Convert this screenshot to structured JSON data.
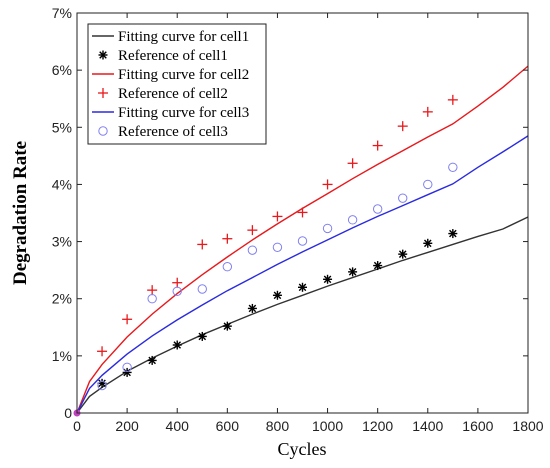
{
  "chart_data": {
    "type": "line",
    "xlabel": "Cycles",
    "ylabel": "Degradation Rate",
    "xlim": [
      0,
      1800
    ],
    "ylim": [
      0,
      7
    ],
    "xticks": [
      0,
      200,
      400,
      600,
      800,
      1000,
      1200,
      1400,
      1600,
      1800
    ],
    "xtick_labels": [
      "0",
      "200",
      "400",
      "600",
      "800",
      "1000",
      "1200",
      "1400",
      "1600",
      "1800"
    ],
    "yticks": [
      0,
      1,
      2,
      3,
      4,
      5,
      6,
      7
    ],
    "ytick_labels": [
      "0",
      "1%",
      "2%",
      "3%",
      "4%",
      "5%",
      "6%",
      "7%"
    ],
    "legend_position": "top-left",
    "grid": false,
    "series": [
      {
        "name": "Fitting curve for cell1",
        "kind": "curve",
        "color": "#333333",
        "x": [
          0,
          50,
          100,
          200,
          300,
          400,
          500,
          600,
          700,
          800,
          900,
          1000,
          1100,
          1200,
          1300,
          1400,
          1500,
          1600,
          1700,
          1800
        ],
        "y": [
          0,
          0.29,
          0.45,
          0.73,
          0.96,
          1.17,
          1.37,
          1.55,
          1.73,
          1.9,
          2.06,
          2.22,
          2.37,
          2.52,
          2.67,
          2.81,
          2.95,
          3.09,
          3.22,
          3.43
        ]
      },
      {
        "name": "Reference of cell1",
        "kind": "marker",
        "marker": "asterisk",
        "color": "#000000",
        "x": [
          100,
          200,
          300,
          400,
          500,
          600,
          700,
          800,
          900,
          1000,
          1100,
          1200,
          1300,
          1400,
          1500
        ],
        "y": [
          0.52,
          0.71,
          0.92,
          1.19,
          1.34,
          1.52,
          1.83,
          2.06,
          2.2,
          2.34,
          2.47,
          2.58,
          2.78,
          2.97,
          3.14
        ]
      },
      {
        "name": "Fitting curve for cell2",
        "kind": "curve",
        "color": "#e8191c",
        "x": [
          0,
          50,
          100,
          200,
          300,
          400,
          500,
          600,
          700,
          800,
          900,
          1000,
          1100,
          1200,
          1300,
          1400,
          1500,
          1600,
          1700,
          1800
        ],
        "y": [
          0,
          0.55,
          0.85,
          1.33,
          1.73,
          2.09,
          2.42,
          2.73,
          3.03,
          3.31,
          3.58,
          3.84,
          4.1,
          4.35,
          4.59,
          4.83,
          5.06,
          5.37,
          5.7,
          6.07
        ]
      },
      {
        "name": "Reference of cell2",
        "kind": "marker",
        "marker": "plus",
        "color": "#e8191c",
        "x": [
          100,
          200,
          300,
          400,
          500,
          600,
          700,
          800,
          900,
          1000,
          1100,
          1200,
          1300,
          1400,
          1500
        ],
        "y": [
          1.08,
          1.64,
          2.15,
          2.28,
          2.95,
          3.05,
          3.2,
          3.44,
          3.51,
          4.0,
          4.37,
          4.68,
          5.02,
          5.27,
          5.48
        ]
      },
      {
        "name": "Fitting curve for cell3",
        "kind": "curve",
        "color": "#2a2ae0",
        "x": [
          0,
          50,
          100,
          200,
          300,
          400,
          500,
          600,
          700,
          800,
          900,
          1000,
          1100,
          1200,
          1300,
          1400,
          1500,
          1600,
          1700,
          1800
        ],
        "y": [
          0,
          0.43,
          0.66,
          1.03,
          1.35,
          1.63,
          1.89,
          2.14,
          2.37,
          2.6,
          2.82,
          3.03,
          3.24,
          3.44,
          3.63,
          3.82,
          4.01,
          4.3,
          4.57,
          4.85
        ]
      },
      {
        "name": "Reference of cell3",
        "kind": "marker",
        "marker": "circle",
        "color": "#8080f0",
        "x": [
          100,
          200,
          300,
          400,
          500,
          600,
          700,
          800,
          900,
          1000,
          1100,
          1200,
          1300,
          1400,
          1500
        ],
        "y": [
          0.48,
          0.8,
          2.0,
          2.13,
          2.17,
          2.56,
          2.85,
          2.9,
          3.01,
          3.23,
          3.38,
          3.57,
          3.76,
          4.0,
          4.3
        ]
      }
    ],
    "origin_point": {
      "x": 0,
      "y": 0,
      "color": "#c040c0"
    }
  }
}
